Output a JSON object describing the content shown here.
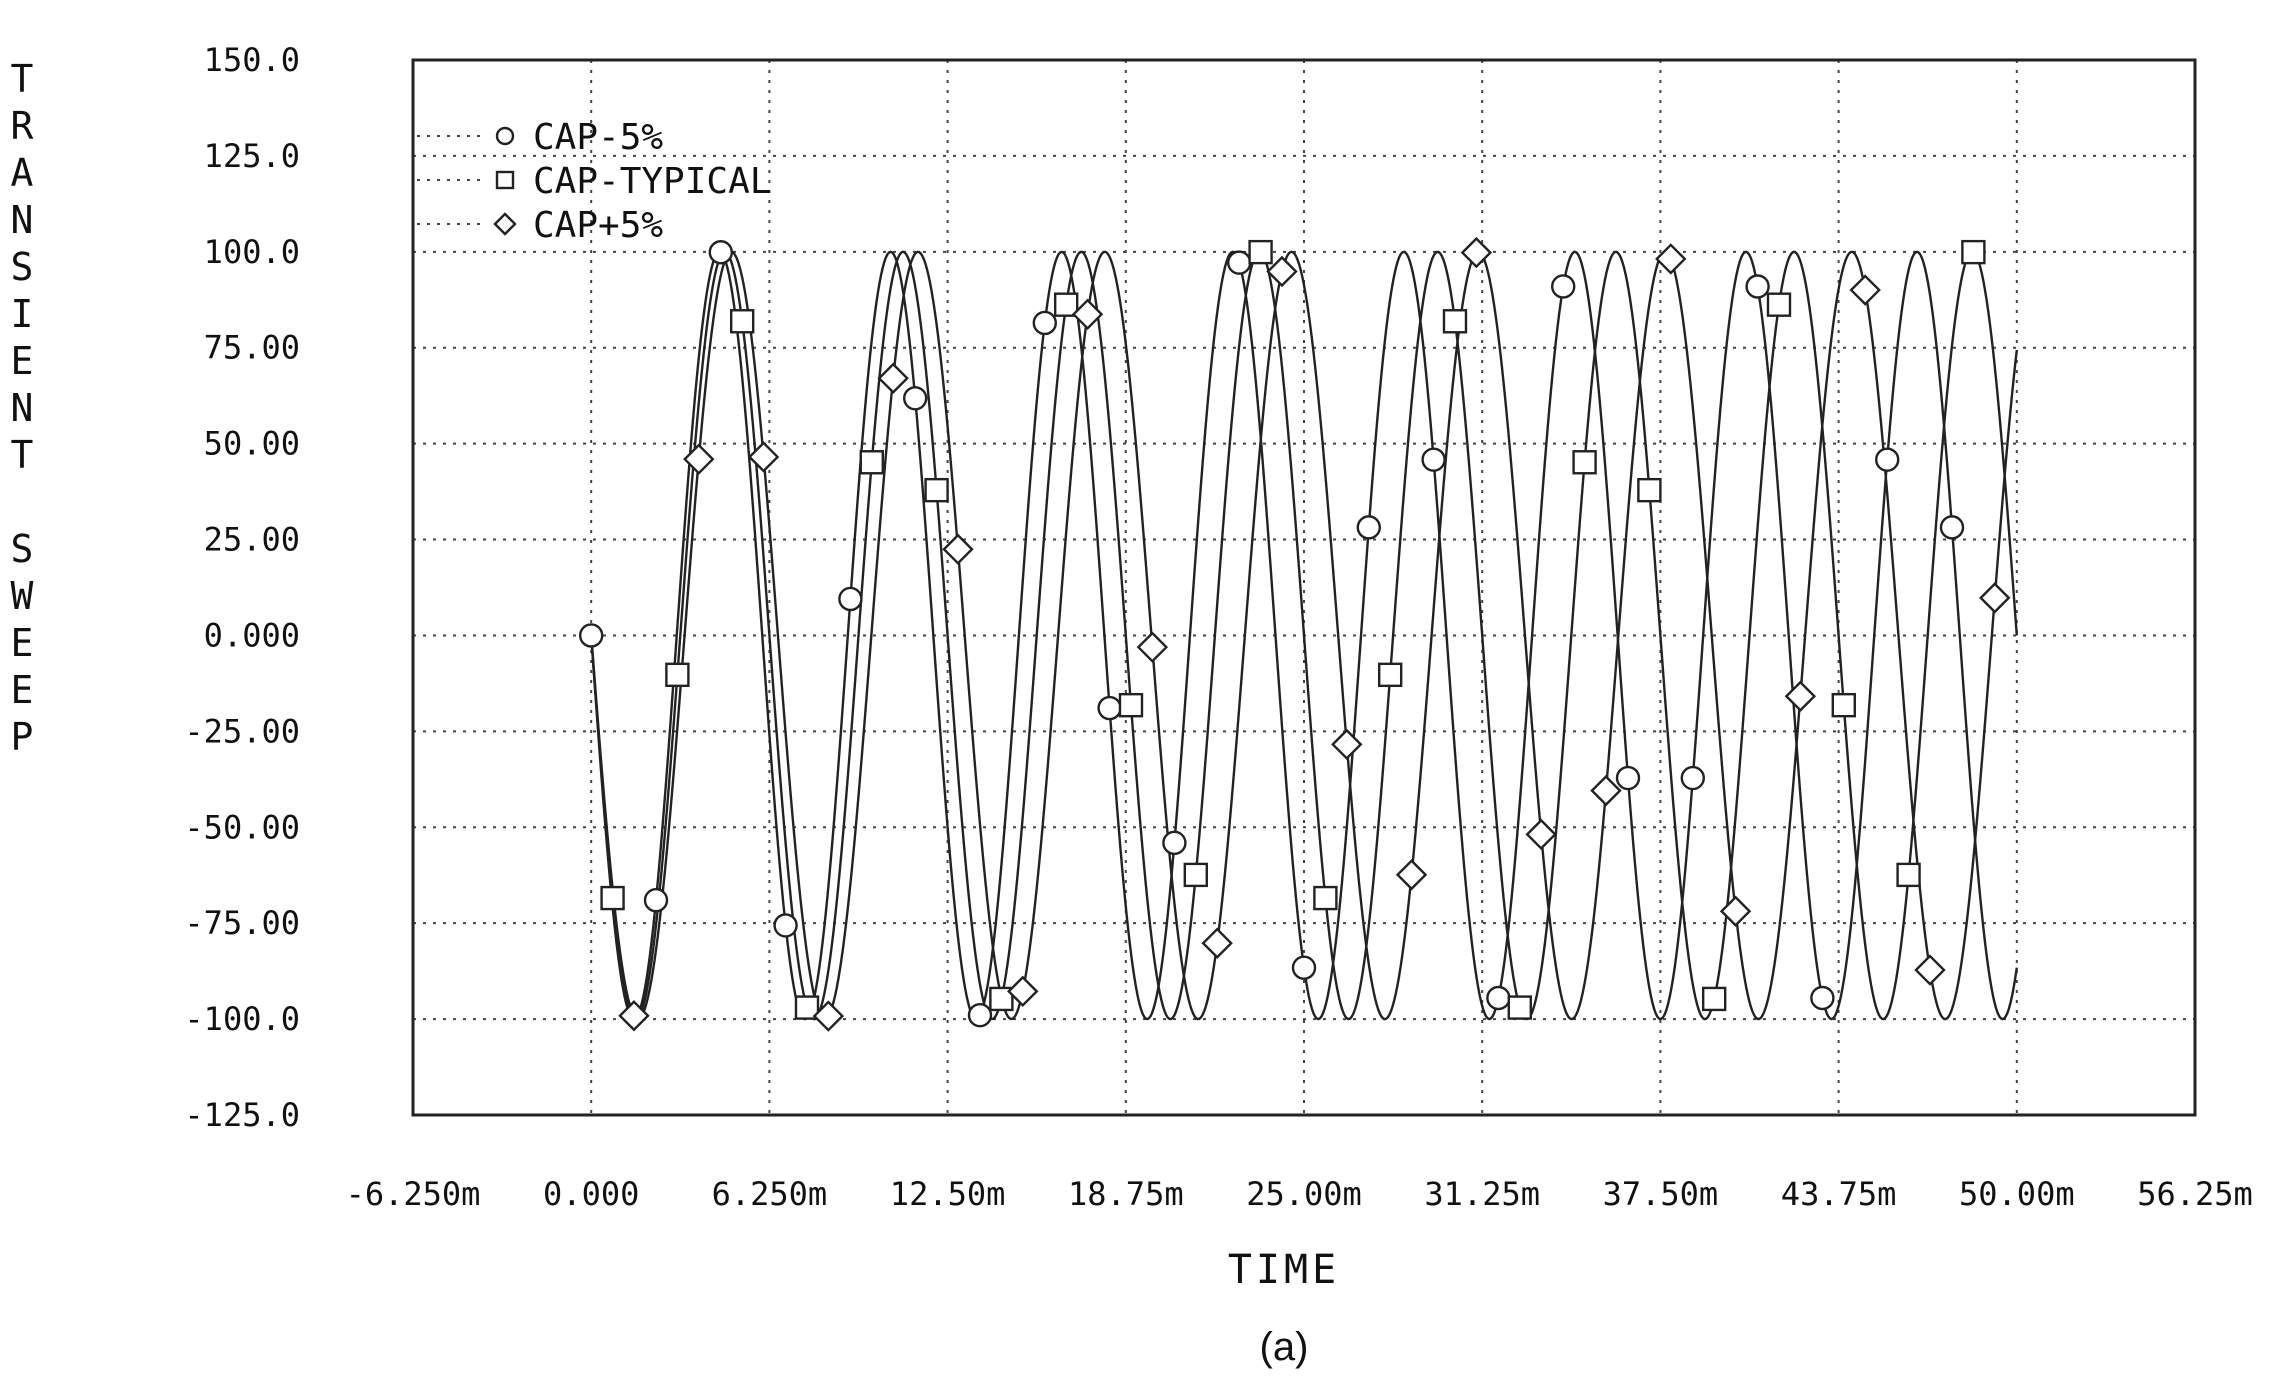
{
  "chart_data": {
    "type": "line",
    "title": "",
    "xlabel": "TIME",
    "ylabel": "TRANSIENT SWEEP",
    "caption": "(a)",
    "xlim": [
      -6.25,
      56.25
    ],
    "ylim": [
      -125,
      150
    ],
    "x_unit": "ms",
    "xticks": [
      -6.25,
      0,
      6.25,
      12.5,
      18.75,
      25,
      31.25,
      37.5,
      43.75,
      50,
      56.25
    ],
    "xtick_labels": [
      "-6.250m",
      "0.000",
      "6.250m",
      "12.50m",
      "18.75m",
      "25.00m",
      "31.25m",
      "37.50m",
      "43.75m",
      "50.00m",
      "56.25m"
    ],
    "yticks": [
      150,
      125,
      100,
      75,
      50,
      25,
      0,
      -25,
      -50,
      -75,
      -100,
      -125
    ],
    "ytick_labels": [
      "150.0",
      "125.0",
      "100.0",
      "75.00",
      "50.00",
      "25.00",
      "0.000",
      "-25.00",
      "-50.00",
      "-75.00",
      "-100.0",
      "-125.0"
    ],
    "grid": true,
    "legend_position": "top-left",
    "series": [
      {
        "name": "CAP-5%",
        "marker": "circle",
        "amplitude": 100,
        "period_ms": 6.0,
        "phase": 3.1416,
        "t_start": 0,
        "t_end": 50
      },
      {
        "name": "CAP-TYPICAL",
        "marker": "square",
        "amplitude": 100,
        "period_ms": 6.25,
        "phase": 3.1416,
        "t_start": 0,
        "t_end": 50
      },
      {
        "name": "CAP+5%",
        "marker": "diamond",
        "amplitude": 100,
        "period_ms": 6.55,
        "phase": 3.1416,
        "t_start": 0,
        "t_end": 50
      }
    ]
  },
  "legend": {
    "items": [
      {
        "label": "CAP-5%",
        "marker": "circle"
      },
      {
        "label": "CAP-TYPICAL",
        "marker": "square"
      },
      {
        "label": "CAP+5%",
        "marker": "diamond"
      }
    ]
  }
}
